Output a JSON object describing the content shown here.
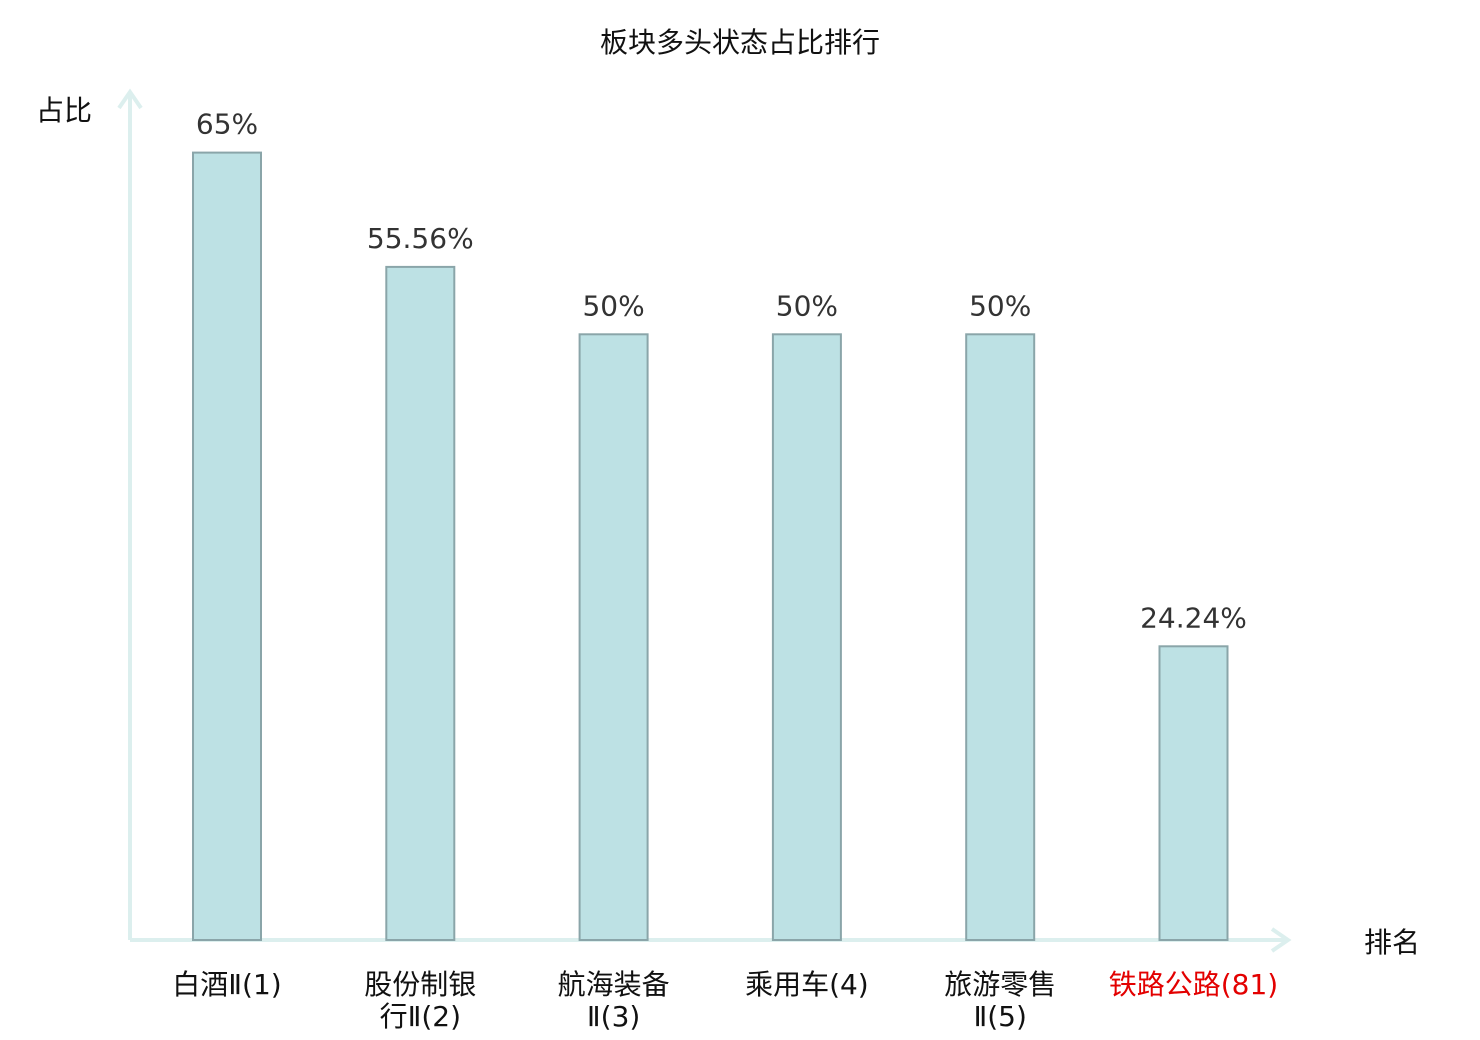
{
  "chart_data": {
    "type": "bar",
    "title": "板块多头状态占比排行",
    "ylabel": "占比",
    "xlabel": "排名",
    "categories": [
      [
        "白酒Ⅱ(1)"
      ],
      [
        "股份制银",
        "行Ⅱ(2)"
      ],
      [
        "航海装备",
        "Ⅱ(3)"
      ],
      [
        "乘用车(4)"
      ],
      [
        "旅游零售",
        "Ⅱ(5)"
      ],
      [
        "铁路公路(81)"
      ]
    ],
    "values": [
      65,
      55.56,
      50,
      50,
      50,
      24.24
    ],
    "value_labels": [
      "65%",
      "55.56%",
      "50%",
      "50%",
      "50%",
      "24.24%"
    ],
    "ylim": [
      0,
      70
    ],
    "grid": false,
    "legend": "none",
    "colors": {
      "bar_fill": "#bde1e4",
      "bar_stroke": "#8aa5a9",
      "axis": "#dcefee",
      "label_default": "#111111",
      "label_highlight": "#e30000",
      "value_label": "#333333"
    },
    "highlight_index": 5
  }
}
